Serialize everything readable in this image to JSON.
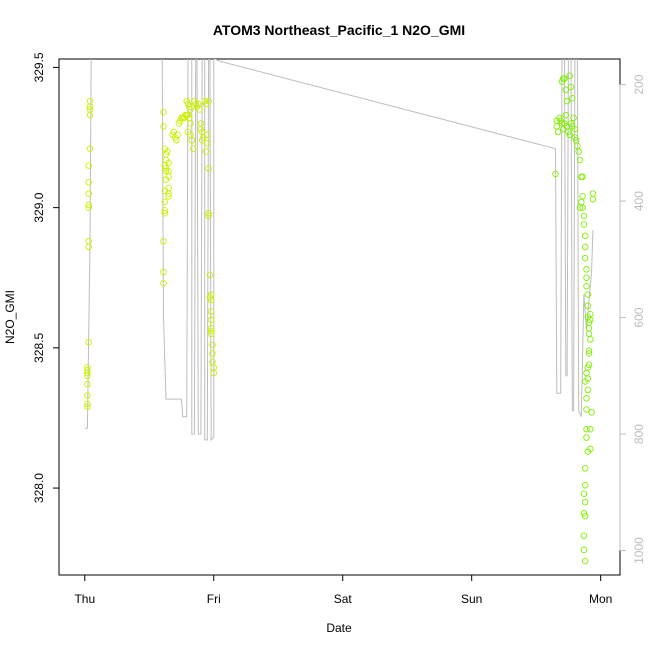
{
  "chart_data": {
    "type": "scatter",
    "title": "ATOM3 Northeast_Pacific_1 N2O_GMI",
    "xlabel": "Date",
    "ylabel": "N2O_GMI",
    "x_tick_labels": [
      "Thu",
      "Fri",
      "Sat",
      "Sun",
      "Mon"
    ],
    "x_tick_values": [
      0,
      1,
      2,
      3,
      4
    ],
    "xlim": [
      -0.2,
      4.15
    ],
    "y_ticks": [
      328.0,
      328.5,
      329.0,
      329.5
    ],
    "y_tick_labels": [
      "328.0",
      "328.5",
      "329.0",
      "329.5"
    ],
    "ylim": [
      327.69,
      329.53
    ],
    "y2_ticks": [
      200,
      400,
      600,
      800,
      1000
    ],
    "y2_tick_labels": [
      "200",
      "400",
      "600",
      "800",
      "1000"
    ],
    "y2lim": [
      156,
      1042
    ],
    "y2_reversed": true,
    "grid": false,
    "legend": "none",
    "colors": {
      "axis": "#000000",
      "pressure_line": "#bdbdbd",
      "points_early": "#ccf000",
      "points_late": "#80f000"
    },
    "points": [
      [
        0.02,
        328.42
      ],
      [
        0.02,
        328.4
      ],
      [
        0.02,
        328.41
      ],
      [
        0.02,
        328.43
      ],
      [
        0.02,
        328.37
      ],
      [
        0.02,
        328.33
      ],
      [
        0.02,
        328.3
      ],
      [
        0.02,
        328.29
      ],
      [
        0.03,
        329.15
      ],
      [
        0.03,
        329.09
      ],
      [
        0.03,
        329.01
      ],
      [
        0.03,
        329.0
      ],
      [
        0.03,
        328.88
      ],
      [
        0.03,
        328.86
      ],
      [
        0.03,
        328.52
      ],
      [
        0.03,
        329.05
      ],
      [
        0.04,
        329.38
      ],
      [
        0.04,
        329.36
      ],
      [
        0.04,
        329.35
      ],
      [
        0.04,
        329.33
      ],
      [
        0.04,
        329.21
      ],
      [
        0.61,
        329.34
      ],
      [
        0.61,
        329.29
      ],
      [
        0.61,
        328.88
      ],
      [
        0.61,
        328.77
      ],
      [
        0.61,
        328.73
      ],
      [
        0.62,
        329.21
      ],
      [
        0.62,
        329.15
      ],
      [
        0.62,
        329.06
      ],
      [
        0.62,
        329.02
      ],
      [
        0.62,
        328.98
      ],
      [
        0.62,
        328.99
      ],
      [
        0.63,
        329.19
      ],
      [
        0.63,
        329.17
      ],
      [
        0.63,
        329.13
      ],
      [
        0.63,
        329.1
      ],
      [
        0.63,
        329.14
      ],
      [
        0.64,
        329.2
      ],
      [
        0.65,
        329.07
      ],
      [
        0.65,
        329.05
      ],
      [
        0.65,
        329.04
      ],
      [
        0.65,
        329.11
      ],
      [
        0.65,
        329.16
      ],
      [
        0.65,
        329.13
      ],
      [
        0.68,
        329.26
      ],
      [
        0.69,
        329.27
      ],
      [
        0.7,
        329.25
      ],
      [
        0.71,
        329.24
      ],
      [
        0.72,
        329.26
      ],
      [
        0.73,
        329.3
      ],
      [
        0.74,
        329.31
      ],
      [
        0.75,
        329.32
      ],
      [
        0.76,
        329.32
      ],
      [
        0.77,
        329.32
      ],
      [
        0.78,
        329.33
      ],
      [
        0.79,
        329.33
      ],
      [
        0.8,
        329.33
      ],
      [
        0.81,
        329.32
      ],
      [
        0.82,
        329.3
      ],
      [
        0.8,
        329.27
      ],
      [
        0.82,
        329.26
      ],
      [
        0.83,
        329.24
      ],
      [
        0.79,
        329.38
      ],
      [
        0.8,
        329.37
      ],
      [
        0.81,
        329.36
      ],
      [
        0.82,
        329.35
      ],
      [
        0.83,
        329.24
      ],
      [
        0.84,
        329.21
      ],
      [
        0.85,
        329.38
      ],
      [
        0.86,
        329.37
      ],
      [
        0.87,
        329.36
      ],
      [
        0.88,
        329.37
      ],
      [
        0.89,
        329.35
      ],
      [
        0.9,
        329.28
      ],
      [
        0.9,
        329.3
      ],
      [
        0.91,
        329.27
      ],
      [
        0.91,
        329.24
      ],
      [
        0.92,
        329.25
      ],
      [
        0.93,
        329.38
      ],
      [
        0.94,
        329.37
      ],
      [
        0.95,
        329.26
      ],
      [
        0.95,
        329.23
      ],
      [
        0.94,
        329.2
      ],
      [
        0.96,
        329.38
      ],
      [
        0.96,
        328.98
      ],
      [
        0.96,
        329.14
      ],
      [
        0.96,
        328.97
      ],
      [
        0.97,
        328.76
      ],
      [
        0.97,
        328.68
      ],
      [
        0.98,
        328.69
      ],
      [
        0.98,
        328.67
      ],
      [
        0.98,
        328.63
      ],
      [
        0.98,
        328.6
      ],
      [
        0.98,
        328.57
      ],
      [
        0.98,
        328.56
      ],
      [
        0.98,
        328.55
      ],
      [
        0.99,
        328.51
      ],
      [
        0.99,
        328.48
      ],
      [
        0.99,
        328.45
      ],
      [
        1.0,
        328.43
      ],
      [
        1.0,
        328.41
      ],
      [
        3.65,
        329.12
      ],
      [
        3.66,
        329.31
      ],
      [
        3.66,
        329.29
      ],
      [
        3.67,
        329.27
      ],
      [
        3.68,
        329.32
      ],
      [
        3.69,
        329.31
      ],
      [
        3.7,
        329.3
      ],
      [
        3.71,
        329.28
      ],
      [
        3.72,
        329.3
      ],
      [
        3.7,
        329.45
      ],
      [
        3.71,
        329.46
      ],
      [
        3.72,
        329.46
      ],
      [
        3.73,
        329.42
      ],
      [
        3.74,
        329.38
      ],
      [
        3.73,
        329.33
      ],
      [
        3.74,
        329.29
      ],
      [
        3.75,
        329.27
      ],
      [
        3.76,
        329.26
      ],
      [
        3.77,
        329.3
      ],
      [
        3.78,
        329.29
      ],
      [
        3.76,
        329.47
      ],
      [
        3.77,
        329.43
      ],
      [
        3.78,
        329.39
      ],
      [
        3.79,
        329.32
      ],
      [
        3.8,
        329.28
      ],
      [
        3.8,
        329.25
      ],
      [
        3.81,
        329.24
      ],
      [
        3.82,
        329.22
      ],
      [
        3.83,
        329.2
      ],
      [
        3.84,
        329.17
      ],
      [
        3.85,
        329.11
      ],
      [
        3.86,
        329.04
      ],
      [
        3.86,
        329.0
      ],
      [
        3.87,
        328.97
      ],
      [
        3.87,
        328.94
      ],
      [
        3.88,
        328.9
      ],
      [
        3.88,
        328.86
      ],
      [
        3.88,
        328.82
      ],
      [
        3.89,
        328.78
      ],
      [
        3.89,
        328.75
      ],
      [
        3.89,
        328.72
      ],
      [
        3.9,
        328.69
      ],
      [
        3.9,
        328.65
      ],
      [
        3.9,
        328.61
      ],
      [
        3.91,
        328.59
      ],
      [
        3.91,
        328.57
      ],
      [
        3.92,
        328.6
      ],
      [
        3.92,
        328.62
      ],
      [
        3.91,
        328.55
      ],
      [
        3.91,
        328.49
      ],
      [
        3.91,
        328.44
      ],
      [
        3.9,
        328.39
      ],
      [
        3.9,
        328.35
      ],
      [
        3.89,
        328.32
      ],
      [
        3.89,
        328.28
      ],
      [
        3.89,
        328.21
      ],
      [
        3.89,
        328.18
      ],
      [
        3.9,
        328.13
      ],
      [
        3.88,
        328.07
      ],
      [
        3.88,
        328.01
      ],
      [
        3.88,
        327.95
      ],
      [
        3.87,
        327.98
      ],
      [
        3.87,
        327.91
      ],
      [
        3.88,
        327.9
      ],
      [
        3.87,
        327.83
      ],
      [
        3.87,
        327.78
      ],
      [
        3.88,
        327.74
      ],
      [
        3.92,
        328.21
      ],
      [
        3.92,
        328.14
      ],
      [
        3.93,
        328.27
      ],
      [
        3.94,
        329.03
      ],
      [
        3.94,
        329.05
      ],
      [
        3.88,
        328.38
      ],
      [
        3.89,
        328.41
      ],
      [
        3.9,
        328.43
      ],
      [
        3.91,
        328.48
      ],
      [
        3.92,
        328.53
      ],
      [
        3.84,
        329.0
      ],
      [
        3.85,
        329.02
      ],
      [
        3.86,
        329.11
      ]
    ],
    "pressure_line": [
      [
        0.0,
        790
      ],
      [
        0.02,
        790
      ],
      [
        0.04,
        470
      ],
      [
        0.05,
        155
      ],
      [
        0.6,
        155
      ],
      [
        0.61,
        600
      ],
      [
        0.63,
        740
      ],
      [
        0.75,
        740
      ],
      [
        0.76,
        770
      ],
      [
        0.79,
        770
      ],
      [
        0.8,
        155
      ],
      [
        0.83,
        155
      ],
      [
        0.83,
        800
      ],
      [
        0.85,
        800
      ],
      [
        0.86,
        155
      ],
      [
        0.87,
        155
      ],
      [
        0.88,
        800
      ],
      [
        0.9,
        800
      ],
      [
        0.91,
        155
      ],
      [
        0.93,
        155
      ],
      [
        0.93,
        810
      ],
      [
        0.95,
        810
      ],
      [
        0.96,
        155
      ],
      [
        0.97,
        155
      ],
      [
        0.98,
        810
      ],
      [
        1.0,
        805
      ],
      [
        1.0,
        155
      ],
      [
        1.05,
        160
      ],
      [
        3.65,
        310
      ],
      [
        3.66,
        730
      ],
      [
        3.69,
        730
      ],
      [
        3.7,
        155
      ],
      [
        3.72,
        155
      ],
      [
        3.73,
        700
      ],
      [
        3.74,
        700
      ],
      [
        3.75,
        155
      ],
      [
        3.77,
        155
      ],
      [
        3.78,
        760
      ],
      [
        3.79,
        760
      ],
      [
        3.8,
        155
      ],
      [
        3.82,
        155
      ],
      [
        3.83,
        760
      ],
      [
        3.85,
        770
      ],
      [
        3.87,
        560
      ],
      [
        3.89,
        620
      ],
      [
        3.93,
        520
      ],
      [
        3.94,
        450
      ]
    ]
  }
}
